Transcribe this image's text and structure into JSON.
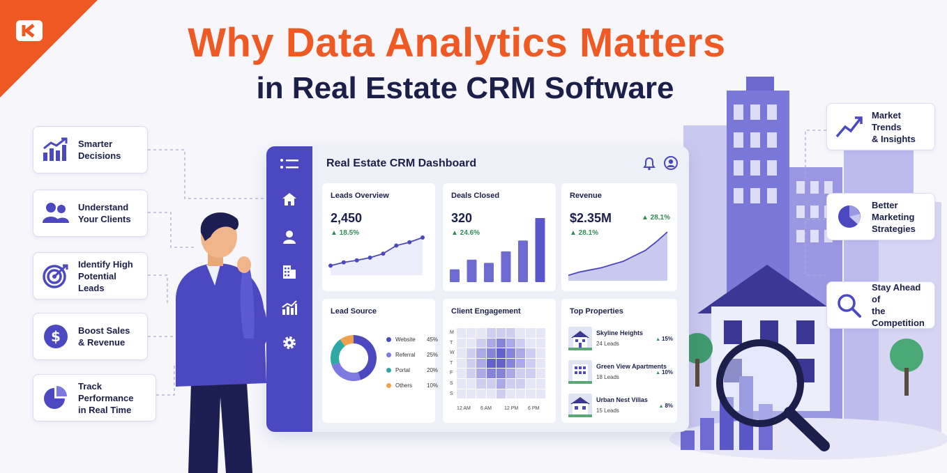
{
  "header": {
    "title_line1": "Why Data Analytics Matters",
    "title_line2": "in Real Estate CRM Software"
  },
  "brand": {
    "logo_icon": "chevron-k-logo-icon",
    "accent": "#ef5a24",
    "primary": "#4b48c0",
    "navy": "#1c1f4a"
  },
  "left_features": [
    {
      "label": "Smarter\nDecisions",
      "icon": "growth-chart-icon"
    },
    {
      "label": "Understand\nYour Clients",
      "icon": "users-icon"
    },
    {
      "label": "Identify High\nPotential Leads",
      "icon": "target-icon"
    },
    {
      "label": "Boost Sales\n& Revenue",
      "icon": "dollar-icon"
    },
    {
      "label": "Track Performance\nin Real Time",
      "icon": "pie-chart-icon"
    }
  ],
  "right_features": [
    {
      "label": "Market Trends\n& Insights",
      "icon": "trend-up-icon"
    },
    {
      "label": "Better Marketing\nStrategies",
      "icon": "pie-chart-icon"
    },
    {
      "label": "Stay Ahead of\nthe Competition",
      "icon": "magnifier-icon"
    }
  ],
  "dashboard": {
    "title": "Real Estate CRM Dashboard",
    "sidebar_icons": [
      "menu-icon",
      "home-icon",
      "user-icon",
      "building-icon",
      "bar-chart-icon",
      "gear-icon"
    ],
    "leads_overview": {
      "title": "Leads Overview",
      "value": "2,450",
      "change": "▲ 18.5%",
      "trend": [
        10,
        15,
        18,
        22,
        28,
        40,
        45,
        52
      ]
    },
    "deals_closed": {
      "title": "Deals Closed",
      "value": "320",
      "change": "▲ 24.6%",
      "bars": [
        20,
        35,
        30,
        48,
        65,
        100
      ]
    },
    "revenue": {
      "title": "Revenue",
      "value": "$2.35M",
      "change": "▲ 28.1%",
      "change_top": "▲ 28.1%",
      "trend": [
        10,
        16,
        20,
        24,
        30,
        36,
        46,
        56,
        72,
        90
      ]
    },
    "lead_source": {
      "title": "Lead Source",
      "items": [
        {
          "name": "Website",
          "pct": "45%",
          "value": 45,
          "color": "#4b48c0"
        },
        {
          "name": "Referral",
          "pct": "25%",
          "value": 25,
          "color": "#7d7adf"
        },
        {
          "name": "Portal",
          "pct": "20%",
          "value": 20,
          "color": "#2fa9a5"
        },
        {
          "name": "Others",
          "pct": "10%",
          "value": 10,
          "color": "#f0a04b"
        }
      ]
    },
    "client_engagement": {
      "title": "Client Engagement",
      "days": [
        "M",
        "T",
        "W",
        "T",
        "F",
        "S",
        "S"
      ],
      "hours": [
        "12 AM",
        "6 AM",
        "12 PM",
        "6 PM"
      ],
      "grid": [
        [
          1,
          1,
          1,
          2,
          2,
          2,
          1,
          1,
          1
        ],
        [
          1,
          1,
          2,
          3,
          4,
          3,
          2,
          1,
          1
        ],
        [
          1,
          2,
          3,
          4,
          5,
          4,
          3,
          2,
          1
        ],
        [
          1,
          2,
          3,
          5,
          5,
          4,
          3,
          2,
          1
        ],
        [
          1,
          2,
          3,
          4,
          4,
          3,
          2,
          2,
          1
        ],
        [
          1,
          1,
          2,
          2,
          3,
          2,
          2,
          1,
          1
        ],
        [
          1,
          1,
          1,
          1,
          2,
          1,
          1,
          1,
          1
        ]
      ]
    },
    "top_properties": {
      "title": "Top Properties",
      "items": [
        {
          "name": "Skyline Heights",
          "leads": "24 Leads",
          "pct": "15%"
        },
        {
          "name": "Green View Apartments",
          "leads": "18 Leads",
          "pct": "10%"
        },
        {
          "name": "Urban Nest Villas",
          "leads": "15 Leads",
          "pct": "8%"
        }
      ]
    }
  }
}
